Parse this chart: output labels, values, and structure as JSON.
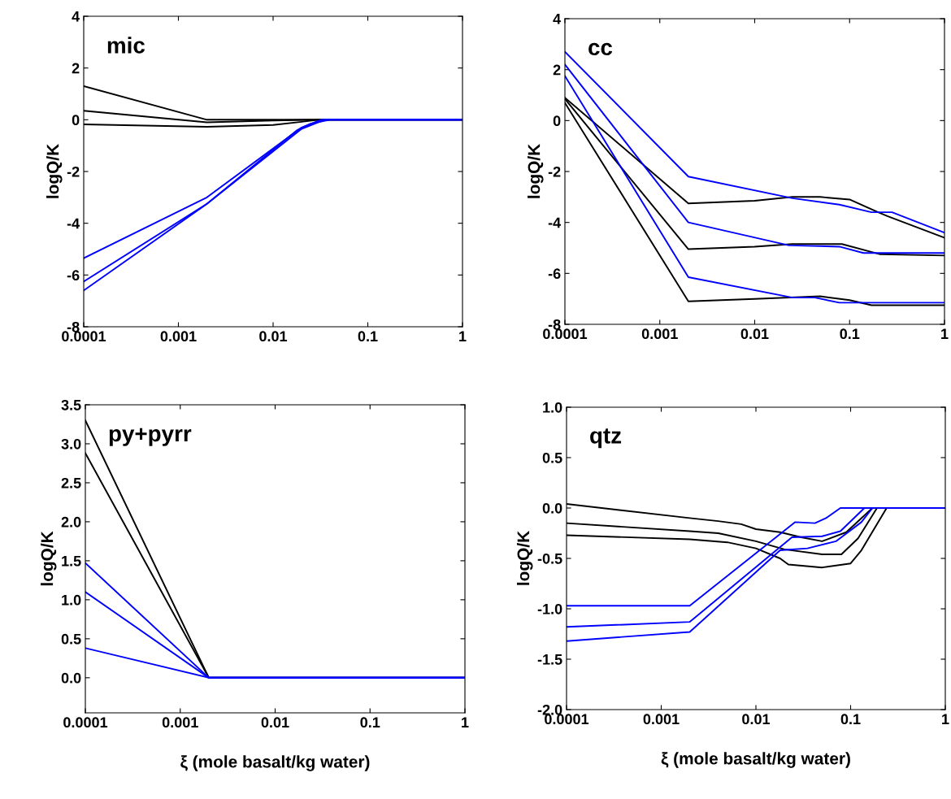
{
  "chart_data": [
    {
      "type": "line",
      "annotations": [
        "mic"
      ],
      "ylabel": "logQ/K",
      "log": "x",
      "grid": false,
      "xlim": [
        0.0001,
        1
      ],
      "xticks": [
        0.0001,
        0.001,
        0.01,
        0.1,
        1
      ],
      "ylim": [
        -8,
        4
      ],
      "yticks": [
        -8,
        -6,
        -4,
        -2,
        0,
        2,
        4
      ],
      "series": [
        {
          "color": "#000000",
          "x": [
            0.0001,
            0.002,
            1
          ],
          "values": [
            1.3,
            0,
            0
          ]
        },
        {
          "color": "#000000",
          "x": [
            0.0001,
            0.002,
            0.01,
            0.03,
            1
          ],
          "values": [
            0.35,
            -0.1,
            -0.03,
            0,
            0
          ]
        },
        {
          "color": "#000000",
          "x": [
            0.0001,
            0.002,
            0.01,
            0.02,
            0.03,
            1
          ],
          "values": [
            -0.18,
            -0.27,
            -0.2,
            -0.08,
            0,
            0
          ]
        },
        {
          "color": "#0000ff",
          "x": [
            0.0001,
            0.002,
            0.02,
            0.032,
            1
          ],
          "values": [
            -5.35,
            -3.0,
            -0.3,
            0,
            0
          ]
        },
        {
          "color": "#0000ff",
          "x": [
            0.0001,
            0.002,
            0.02,
            0.035,
            1
          ],
          "values": [
            -6.25,
            -3.25,
            -0.35,
            0,
            0
          ]
        },
        {
          "color": "#0000ff",
          "x": [
            0.0001,
            0.002,
            0.018,
            0.025,
            0.04,
            1
          ],
          "values": [
            -6.6,
            -3.25,
            -0.4,
            -0.15,
            0,
            0
          ]
        }
      ]
    },
    {
      "type": "line",
      "annotations": [
        "cc"
      ],
      "ylabel": "logQ/K",
      "log": "x",
      "grid": false,
      "xlim": [
        0.0001,
        1
      ],
      "xticks": [
        0.0001,
        0.001,
        0.01,
        0.1,
        1
      ],
      "ylim": [
        -8,
        4
      ],
      "yticks": [
        -8,
        -6,
        -4,
        -2,
        0,
        2,
        4
      ],
      "series": [
        {
          "color": "#000000",
          "x": [
            0.0001,
            0.002,
            0.01,
            0.025,
            0.049,
            0.1,
            0.2,
            0.25,
            1
          ],
          "values": [
            0.9,
            -3.25,
            -3.15,
            -3.0,
            -3.0,
            -3.1,
            -3.6,
            -3.75,
            -4.6
          ]
        },
        {
          "color": "#000000",
          "x": [
            0.0001,
            0.002,
            0.01,
            0.025,
            0.083,
            0.21,
            1
          ],
          "values": [
            0.85,
            -5.05,
            -4.95,
            -4.85,
            -4.85,
            -5.25,
            -5.3
          ]
        },
        {
          "color": "#000000",
          "x": [
            0.0001,
            0.002,
            0.01,
            0.049,
            0.1,
            0.17,
            1
          ],
          "values": [
            0.7,
            -7.1,
            -7.0,
            -6.9,
            -7.05,
            -7.25,
            -7.25
          ]
        },
        {
          "color": "#0000ff",
          "x": [
            0.0001,
            0.002,
            0.025,
            0.078,
            0.17,
            0.28,
            1
          ],
          "values": [
            2.7,
            -2.2,
            -3.05,
            -3.3,
            -3.6,
            -3.6,
            -4.4
          ]
        },
        {
          "color": "#0000ff",
          "x": [
            0.0001,
            0.002,
            0.023,
            0.078,
            0.14,
            1
          ],
          "values": [
            2.2,
            -4.0,
            -4.9,
            -4.95,
            -5.2,
            -5.2
          ]
        },
        {
          "color": "#0000ff",
          "x": [
            0.0001,
            0.002,
            0.025,
            0.043,
            0.078,
            1
          ],
          "values": [
            1.75,
            -6.15,
            -6.95,
            -6.95,
            -7.15,
            -7.15
          ]
        }
      ]
    },
    {
      "type": "line",
      "annotations": [
        "py+pyrr"
      ],
      "xlabel": "ξ (mole basalt/kg water)",
      "ylabel": "logQ/K",
      "log": "x",
      "grid": false,
      "xlim": [
        0.0001,
        1
      ],
      "xticks": [
        0.0001,
        0.001,
        0.01,
        0.1,
        1
      ],
      "ylim": [
        -0.45,
        3.5
      ],
      "yticks": [
        {
          "value": 0,
          "label": "0.0"
        },
        0.5,
        {
          "value": 1,
          "label": "1.0"
        },
        1.5,
        {
          "value": 2,
          "label": "2.0"
        },
        2.5,
        {
          "value": 3,
          "label": "3.0"
        },
        3.5
      ],
      "series": [
        {
          "color": "#000000",
          "x": [
            0.0001,
            0.002,
            1
          ],
          "values": [
            3.3,
            0,
            0
          ]
        },
        {
          "color": "#000000",
          "x": [
            0.0001,
            0.002,
            1
          ],
          "values": [
            2.88,
            0,
            0
          ]
        },
        {
          "color": "#0000ff",
          "x": [
            0.0001,
            0.002,
            1
          ],
          "values": [
            1.47,
            0,
            0
          ]
        },
        {
          "color": "#0000ff",
          "x": [
            0.0001,
            0.002,
            1
          ],
          "values": [
            1.1,
            0,
            0
          ]
        },
        {
          "color": "#0000ff",
          "x": [
            0.0001,
            0.002,
            1
          ],
          "values": [
            0.38,
            0,
            0
          ]
        }
      ]
    },
    {
      "type": "line",
      "annotations": [
        "qtz"
      ],
      "xlabel": "ξ (mole basalt/kg water)",
      "ylabel": "logQ/K",
      "log": "x",
      "grid": false,
      "xlim": [
        0.0001,
        1
      ],
      "xticks": [
        0.0001,
        0.001,
        0.01,
        0.1,
        1
      ],
      "ylim": [
        -2,
        1
      ],
      "yticks": [
        {
          "value": -2,
          "label": "-2.0"
        },
        -1.5,
        {
          "value": -1,
          "label": "-1.0"
        },
        -0.5,
        {
          "value": 0,
          "label": "0.0"
        },
        0.5,
        {
          "value": 1,
          "label": "1.0"
        }
      ],
      "series": [
        {
          "color": "#000000",
          "x": [
            0.0001,
            0.002,
            0.004,
            0.007,
            0.01,
            0.018,
            0.03,
            0.05,
            0.09,
            0.17,
            1
          ],
          "values": [
            0.04,
            -0.1,
            -0.13,
            -0.16,
            -0.21,
            -0.24,
            -0.29,
            -0.33,
            -0.24,
            0,
            0
          ]
        },
        {
          "color": "#000000",
          "x": [
            0.0001,
            0.002,
            0.004,
            0.01,
            0.02,
            0.05,
            0.08,
            0.12,
            0.19,
            1
          ],
          "values": [
            -0.15,
            -0.23,
            -0.25,
            -0.33,
            -0.41,
            -0.46,
            -0.46,
            -0.3,
            0,
            0
          ]
        },
        {
          "color": "#000000",
          "x": [
            0.0001,
            0.002,
            0.005,
            0.01,
            0.018,
            0.022,
            0.05,
            0.1,
            0.13,
            0.24,
            1
          ],
          "values": [
            -0.27,
            -0.31,
            -0.34,
            -0.4,
            -0.5,
            -0.56,
            -0.59,
            -0.55,
            -0.42,
            0,
            0
          ]
        },
        {
          "color": "#0000ff",
          "x": [
            0.0001,
            0.002,
            0.026,
            0.042,
            0.055,
            0.078,
            1
          ],
          "values": [
            -0.97,
            -0.97,
            -0.14,
            -0.15,
            -0.1,
            0,
            0
          ]
        },
        {
          "color": "#0000ff",
          "x": [
            0.0001,
            0.002,
            0.024,
            0.05,
            0.078,
            0.14,
            1
          ],
          "values": [
            -1.18,
            -1.13,
            -0.29,
            -0.28,
            -0.23,
            0,
            0
          ]
        },
        {
          "color": "#0000ff",
          "x": [
            0.0001,
            0.002,
            0.018,
            0.035,
            0.07,
            0.13,
            0.17,
            1
          ],
          "values": [
            -1.32,
            -1.23,
            -0.42,
            -0.4,
            -0.33,
            -0.14,
            0,
            0
          ]
        }
      ]
    }
  ]
}
